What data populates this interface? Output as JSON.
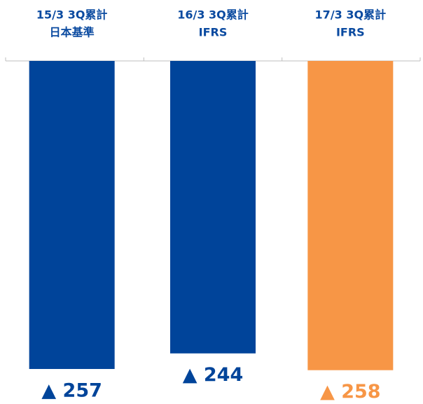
{
  "chart_data": {
    "type": "bar",
    "categories": [
      [
        "15/3 3Q累計",
        "日本基準"
      ],
      [
        "16/3 3Q累計",
        "IFRS"
      ],
      [
        "17/3 3Q累計",
        "IFRS"
      ]
    ],
    "values": [
      -257,
      -244,
      -258
    ],
    "value_labels": [
      "▲ 257",
      "▲ 244",
      "▲ 258"
    ],
    "colors": [
      "#00449a",
      "#00449a",
      "#f79646"
    ]
  }
}
